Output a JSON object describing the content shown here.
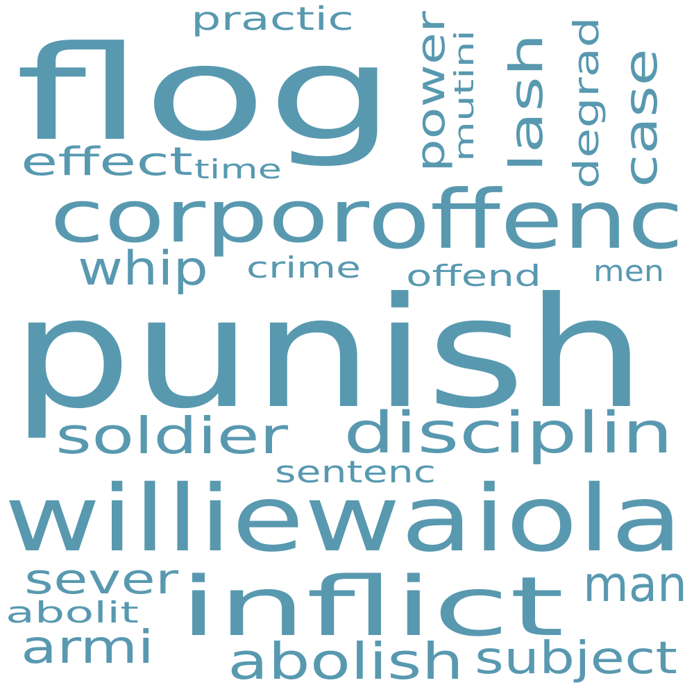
{
  "color": "#5899b0",
  "background": "#ffffff",
  "words": [
    {
      "id": "punish",
      "text": "punish"
    },
    {
      "id": "flog",
      "text": "flog"
    },
    {
      "id": "williewaiola",
      "text": "williewaiola"
    },
    {
      "id": "offenc",
      "text": "offenc"
    },
    {
      "id": "corpor",
      "text": "corpor"
    },
    {
      "id": "inflict",
      "text": "inflict"
    },
    {
      "id": "disciplin",
      "text": "disciplin"
    },
    {
      "id": "soldier",
      "text": "soldier"
    },
    {
      "id": "abolish",
      "text": "abolish"
    },
    {
      "id": "subject",
      "text": "subject"
    },
    {
      "id": "man",
      "text": "man"
    },
    {
      "id": "armi",
      "text": "armi"
    },
    {
      "id": "sever",
      "text": "sever"
    },
    {
      "id": "whip",
      "text": "whip"
    },
    {
      "id": "effect",
      "text": "effect"
    },
    {
      "id": "case",
      "text": "case"
    },
    {
      "id": "lash",
      "text": "lash"
    },
    {
      "id": "power",
      "text": "power"
    },
    {
      "id": "degrad",
      "text": "degrad"
    },
    {
      "id": "practic",
      "text": "practic"
    },
    {
      "id": "mutini",
      "text": "mutini"
    },
    {
      "id": "time",
      "text": "time"
    },
    {
      "id": "crime",
      "text": "crime"
    },
    {
      "id": "offend",
      "text": "offend"
    },
    {
      "id": "men",
      "text": "men"
    },
    {
      "id": "sentenc",
      "text": "sentenc"
    },
    {
      "id": "abolit",
      "text": "abolit"
    }
  ]
}
